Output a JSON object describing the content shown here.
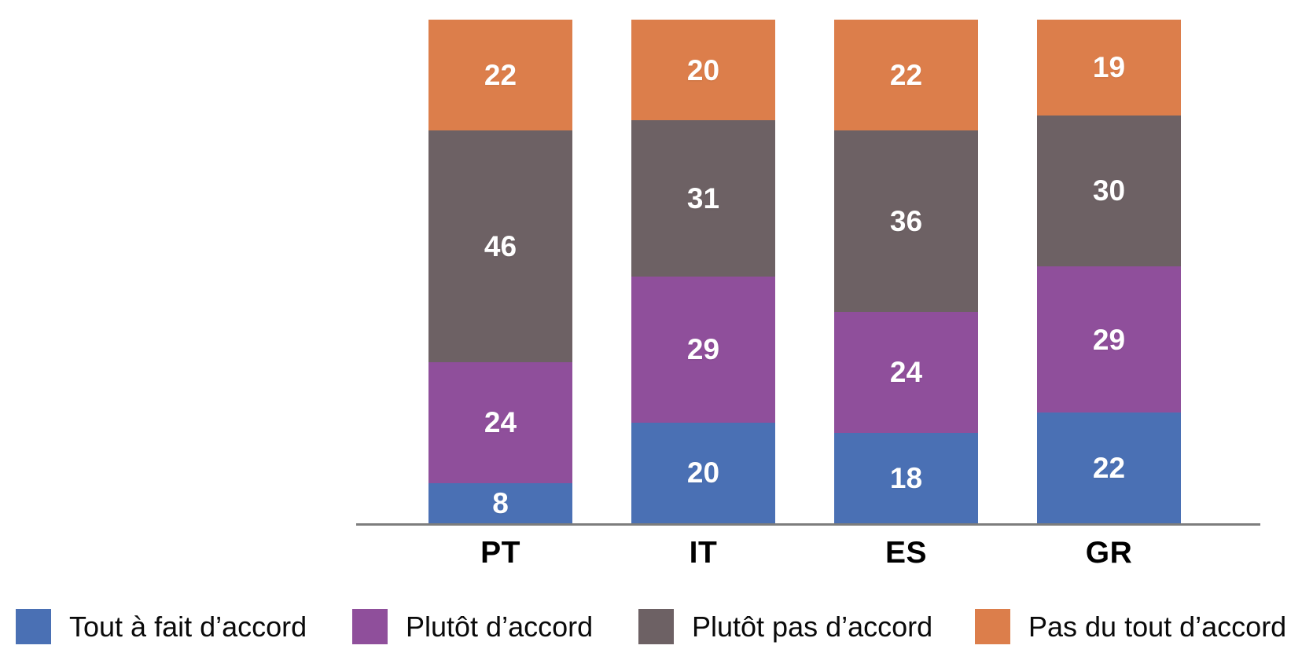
{
  "chart_data": {
    "type": "bar",
    "stacked": true,
    "title": "",
    "xlabel": "",
    "ylabel": "",
    "categories": [
      "PT",
      "IT",
      "ES",
      "GR"
    ],
    "series": [
      {
        "name": "Tout à fait d’accord",
        "color": "#4A70B4",
        "values": [
          8,
          20,
          18,
          22
        ]
      },
      {
        "name": "Plutôt d’accord",
        "color": "#8F4F9B",
        "values": [
          24,
          29,
          24,
          29
        ]
      },
      {
        "name": "Plutôt pas d’accord",
        "color": "#6D6164",
        "values": [
          46,
          31,
          36,
          30
        ]
      },
      {
        "name": "Pas du tout d’accord",
        "color": "#DC7E4B",
        "values": [
          22,
          20,
          22,
          19
        ]
      }
    ],
    "ylim": [
      0,
      100
    ],
    "grid": false,
    "value_labels_shown": true,
    "value_label_color": "#FFFFFF",
    "axis_line_color": "#7D7D7D",
    "legend_position": "bottom"
  }
}
